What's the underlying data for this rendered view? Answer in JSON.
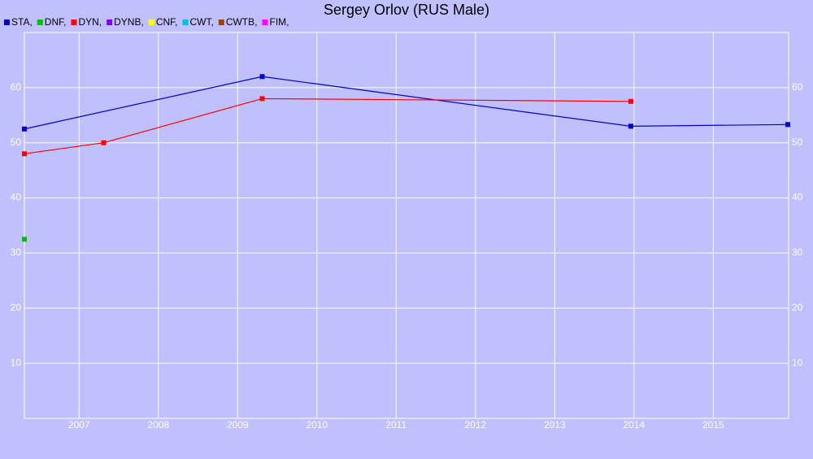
{
  "chart_data": {
    "type": "line",
    "title": "Sergey Orlov (RUS Male)",
    "series": [
      {
        "name": "STA,",
        "color": "#0000cc",
        "x": [
          2006.31,
          2009.31,
          2013.96,
          2015.94
        ],
        "values": [
          52.5,
          62,
          53,
          53.3
        ]
      },
      {
        "name": "DNF,",
        "color": "#00c000",
        "x": [
          2006.31
        ],
        "values": [
          32.5
        ]
      },
      {
        "name": "DYN,",
        "color": "#ff0000",
        "x": [
          2006.31,
          2007.31,
          2009.31,
          2013.96
        ],
        "values": [
          48,
          50,
          58,
          57.5
        ]
      },
      {
        "name": "DYNB,",
        "color": "#8000ff",
        "x": [],
        "values": []
      },
      {
        "name": "CNF,",
        "color": "#ffff00",
        "x": [],
        "values": []
      },
      {
        "name": "CWT,",
        "color": "#00c0e0",
        "x": [],
        "values": []
      },
      {
        "name": "CWTB,",
        "color": "#a04000",
        "x": [],
        "values": []
      },
      {
        "name": "FIM,",
        "color": "#ff00ff",
        "x": [],
        "values": []
      }
    ],
    "xlim": [
      2006.31,
      2015.95
    ],
    "xticks": [
      2007,
      2008,
      2009,
      2010,
      2011,
      2012,
      2013,
      2014,
      2015
    ],
    "ylim": [
      0,
      70
    ],
    "yticks": [
      10,
      20,
      30,
      40,
      50,
      60
    ],
    "grid": true
  }
}
